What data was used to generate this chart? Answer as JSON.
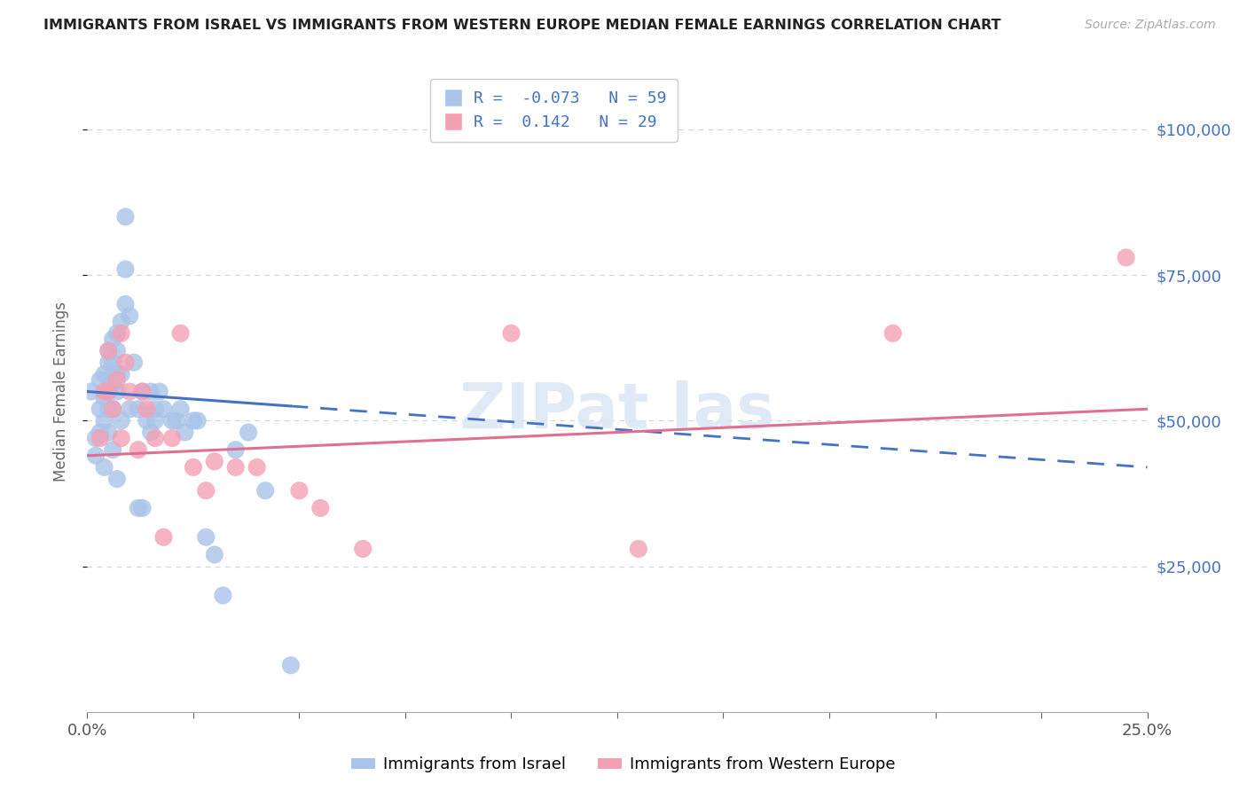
{
  "title": "IMMIGRANTS FROM ISRAEL VS IMMIGRANTS FROM WESTERN EUROPE MEDIAN FEMALE EARNINGS CORRELATION CHART",
  "source": "Source: ZipAtlas.com",
  "ylabel": "Median Female Earnings",
  "ytick_labels": [
    "$25,000",
    "$50,000",
    "$75,000",
    "$100,000"
  ],
  "ytick_values": [
    25000,
    50000,
    75000,
    100000
  ],
  "xmin": 0.0,
  "xmax": 0.25,
  "ymin": 0,
  "ymax": 110000,
  "r_israel": -0.073,
  "n_israel": 59,
  "r_western": 0.142,
  "n_western": 29,
  "israel_color": "#a8c4e8",
  "western_color": "#f4a0b4",
  "israel_line_color": "#4472c4",
  "western_line_color": "#e07090",
  "legend_text_color": "#4472c4",
  "title_color": "#333333",
  "israel_x": [
    0.001,
    0.002,
    0.002,
    0.003,
    0.003,
    0.003,
    0.004,
    0.004,
    0.004,
    0.004,
    0.005,
    0.005,
    0.005,
    0.005,
    0.005,
    0.005,
    0.006,
    0.006,
    0.006,
    0.006,
    0.006,
    0.007,
    0.007,
    0.007,
    0.007,
    0.007,
    0.008,
    0.008,
    0.008,
    0.009,
    0.009,
    0.009,
    0.01,
    0.01,
    0.011,
    0.012,
    0.012,
    0.013,
    0.013,
    0.014,
    0.015,
    0.015,
    0.016,
    0.016,
    0.017,
    0.018,
    0.02,
    0.021,
    0.022,
    0.023,
    0.025,
    0.026,
    0.028,
    0.03,
    0.032,
    0.035,
    0.038,
    0.042,
    0.048
  ],
  "israel_y": [
    55000,
    47000,
    44000,
    57000,
    52000,
    48000,
    58000,
    54000,
    50000,
    42000,
    62000,
    60000,
    57000,
    55000,
    52000,
    48000,
    64000,
    60000,
    56000,
    52000,
    45000,
    65000,
    62000,
    58000,
    55000,
    40000,
    67000,
    58000,
    50000,
    85000,
    76000,
    70000,
    68000,
    52000,
    60000,
    52000,
    35000,
    55000,
    35000,
    50000,
    55000,
    48000,
    52000,
    50000,
    55000,
    52000,
    50000,
    50000,
    52000,
    48000,
    50000,
    50000,
    30000,
    27000,
    20000,
    45000,
    48000,
    38000,
    8000
  ],
  "western_x": [
    0.003,
    0.004,
    0.005,
    0.005,
    0.006,
    0.007,
    0.008,
    0.008,
    0.009,
    0.01,
    0.012,
    0.013,
    0.014,
    0.016,
    0.018,
    0.02,
    0.022,
    0.025,
    0.028,
    0.03,
    0.035,
    0.04,
    0.05,
    0.055,
    0.065,
    0.1,
    0.13,
    0.19,
    0.245
  ],
  "western_y": [
    47000,
    55000,
    62000,
    55000,
    52000,
    57000,
    65000,
    47000,
    60000,
    55000,
    45000,
    55000,
    52000,
    47000,
    30000,
    47000,
    65000,
    42000,
    38000,
    43000,
    42000,
    42000,
    38000,
    35000,
    28000,
    65000,
    28000,
    65000,
    78000
  ],
  "background_color": "#ffffff",
  "grid_color": "#c8d4e8",
  "israel_line_start_x": 0.0,
  "israel_line_solid_end_x": 0.048,
  "israel_line_end_x": 0.25,
  "western_line_start_x": 0.0,
  "western_line_end_x": 0.25,
  "israel_line_y_at_0": 55000,
  "israel_line_y_at_25": 42000,
  "western_line_y_at_0": 44000,
  "western_line_y_at_25": 52000
}
